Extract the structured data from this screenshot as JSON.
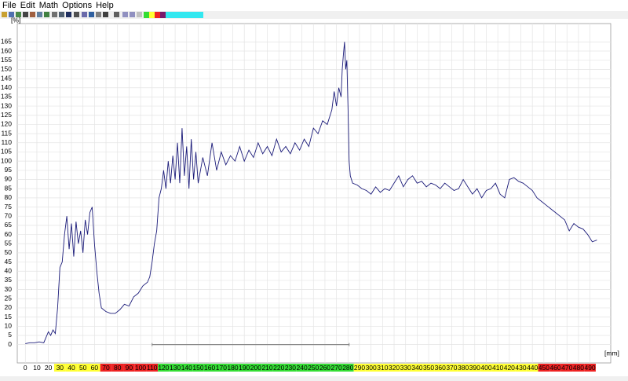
{
  "menu": [
    "File",
    "Edit",
    "Math",
    "Options",
    "Help"
  ],
  "chart_data": {
    "type": "line",
    "y_label": "[%]",
    "x_label": "[mm]",
    "x": [
      0,
      4,
      8,
      12,
      16,
      20,
      22,
      24,
      26,
      28,
      30,
      32,
      34,
      36,
      38,
      40,
      42,
      44,
      46,
      48,
      50,
      52,
      54,
      56,
      58,
      60,
      62,
      64,
      66,
      70,
      74,
      78,
      82,
      86,
      90,
      94,
      98,
      102,
      106,
      108,
      110,
      112,
      114,
      116,
      118,
      120,
      122,
      124,
      126,
      128,
      130,
      132,
      134,
      136,
      138,
      140,
      142,
      144,
      146,
      148,
      150,
      154,
      158,
      162,
      166,
      170,
      174,
      178,
      182,
      186,
      190,
      194,
      198,
      202,
      206,
      210,
      214,
      218,
      222,
      226,
      230,
      234,
      238,
      242,
      246,
      250,
      254,
      258,
      262,
      266,
      268,
      270,
      272,
      274,
      275,
      276,
      277,
      278,
      279,
      280,
      281,
      282,
      284,
      288,
      292,
      296,
      300,
      304,
      308,
      312,
      316,
      320,
      324,
      328,
      332,
      336,
      340,
      344,
      348,
      352,
      356,
      360,
      364,
      368,
      372,
      376,
      380,
      384,
      388,
      392,
      396,
      400,
      404,
      408,
      412,
      416,
      420,
      424,
      428,
      432,
      436,
      440,
      444,
      448,
      452,
      456,
      460,
      464,
      468,
      472,
      476,
      480,
      484,
      488,
      492,
      496
    ],
    "series": [
      {
        "color": "#1c1c7a",
        "values": [
          0.5,
          1,
          1,
          1.5,
          1,
          7,
          5,
          8,
          6,
          20,
          42,
          45,
          60,
          70,
          52,
          66,
          48,
          67,
          55,
          62,
          50,
          68,
          60,
          72,
          75,
          55,
          40,
          28,
          20,
          18,
          17,
          17,
          19,
          22,
          21,
          26,
          28,
          32,
          34,
          37,
          45,
          55,
          62,
          80,
          85,
          95,
          85,
          100,
          88,
          103,
          90,
          110,
          88,
          118,
          92,
          108,
          85,
          112,
          90,
          105,
          88,
          102,
          92,
          110,
          95,
          105,
          98,
          103,
          100,
          108,
          100,
          106,
          102,
          110,
          104,
          108,
          103,
          112,
          105,
          108,
          104,
          110,
          106,
          112,
          108,
          118,
          115,
          122,
          120,
          128,
          138,
          130,
          140,
          135,
          150,
          158,
          165,
          150,
          155,
          130,
          100,
          92,
          88,
          87,
          85,
          84,
          82,
          86,
          83,
          85,
          84,
          88,
          92,
          86,
          90,
          92,
          88,
          89,
          86,
          88,
          87,
          85,
          88,
          86,
          84,
          85,
          90,
          86,
          82,
          85,
          80,
          84,
          85,
          88,
          82,
          80,
          90,
          91,
          89,
          88,
          86,
          84,
          80,
          78,
          76,
          74,
          72,
          70,
          68,
          62,
          66,
          64,
          63,
          60,
          56,
          57
        ]
      }
    ],
    "range_marker": {
      "x": [
        110,
        281
      ],
      "y": 0,
      "color": "#888888"
    },
    "xlim": [
      -7,
      508
    ],
    "ylim": [
      -10,
      175
    ],
    "xticks": [
      0,
      10,
      20,
      30,
      40,
      50,
      60,
      70,
      80,
      90,
      100,
      110,
      120,
      130,
      140,
      150,
      160,
      170,
      180,
      190,
      200,
      210,
      220,
      230,
      240,
      250,
      260,
      270,
      280,
      290,
      300,
      310,
      320,
      330,
      340,
      350,
      360,
      370,
      380,
      390,
      400,
      410,
      420,
      430,
      440,
      450,
      460,
      470,
      480,
      490
    ],
    "xtick_colors": [
      "#ffffff",
      "#ffffff",
      "#ffffff",
      "#ffff33",
      "#ffff33",
      "#ffff33",
      "#ffff33",
      "#ee2222",
      "#ee2222",
      "#ee2222",
      "#ee2222",
      "#ee2222",
      "#33dd33",
      "#33dd33",
      "#33dd33",
      "#33dd33",
      "#33dd33",
      "#33dd33",
      "#33dd33",
      "#33dd33",
      "#33dd33",
      "#33dd33",
      "#33dd33",
      "#33dd33",
      "#33dd33",
      "#33dd33",
      "#33dd33",
      "#33dd33",
      "#33dd33",
      "#ffff33",
      "#ffff33",
      "#ffff33",
      "#ffff33",
      "#ffff33",
      "#ffff33",
      "#ffff33",
      "#ffff33",
      "#ffff33",
      "#ffff33",
      "#ffff33",
      "#ffff33",
      "#ffff33",
      "#ffff33",
      "#ffff33",
      "#ffff33",
      "#ee2222",
      "#ee2222",
      "#ee2222",
      "#ee2222",
      "#ee2222"
    ],
    "yticks": [
      0,
      5,
      10,
      15,
      20,
      25,
      30,
      35,
      40,
      45,
      50,
      55,
      60,
      65,
      70,
      75,
      80,
      85,
      90,
      95,
      100,
      105,
      110,
      115,
      120,
      125,
      130,
      135,
      140,
      145,
      150,
      155,
      160,
      165
    ],
    "grid": true
  }
}
